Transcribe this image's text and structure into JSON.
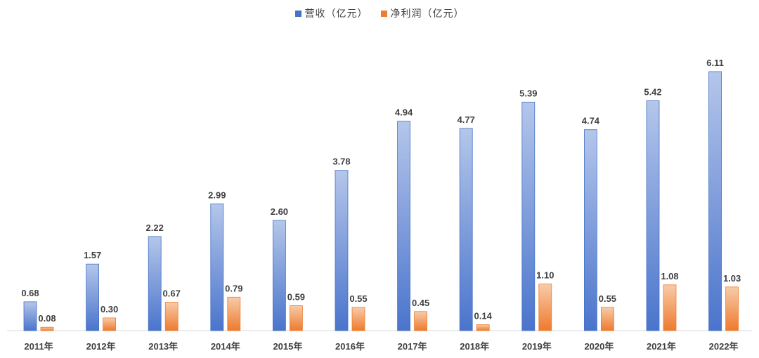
{
  "chart_data": {
    "type": "bar",
    "title": "",
    "xlabel": "",
    "ylabel": "",
    "ylim": [
      0,
      6.3
    ],
    "grid": false,
    "legend_position": "top-center",
    "categories": [
      "2011年",
      "2012年",
      "2013年",
      "2014年",
      "2015年",
      "2016年",
      "2017年",
      "2018年",
      "2019年",
      "2020年",
      "2021年",
      "2022年"
    ],
    "series": [
      {
        "name": "营收（亿元）",
        "color": "#4472C4",
        "values": [
          0.68,
          1.57,
          2.22,
          2.99,
          2.6,
          3.78,
          4.94,
          4.77,
          5.39,
          4.74,
          5.42,
          6.11
        ],
        "labels": [
          "0.68",
          "1.57",
          "2.22",
          "2.99",
          "2.60",
          "3.78",
          "4.94",
          "4.77",
          "5.39",
          "4.74",
          "5.42",
          "6.11"
        ]
      },
      {
        "name": "净利润（亿元）",
        "color": "#ED7D31",
        "values": [
          0.08,
          0.3,
          0.67,
          0.79,
          0.59,
          0.55,
          0.45,
          0.14,
          1.1,
          0.55,
          1.08,
          1.03
        ],
        "labels": [
          "0.08",
          "0.30",
          "0.67",
          "0.79",
          "0.59",
          "0.55",
          "0.45",
          "0.14",
          "1.10",
          "0.55",
          "1.08",
          "1.03"
        ]
      }
    ]
  }
}
